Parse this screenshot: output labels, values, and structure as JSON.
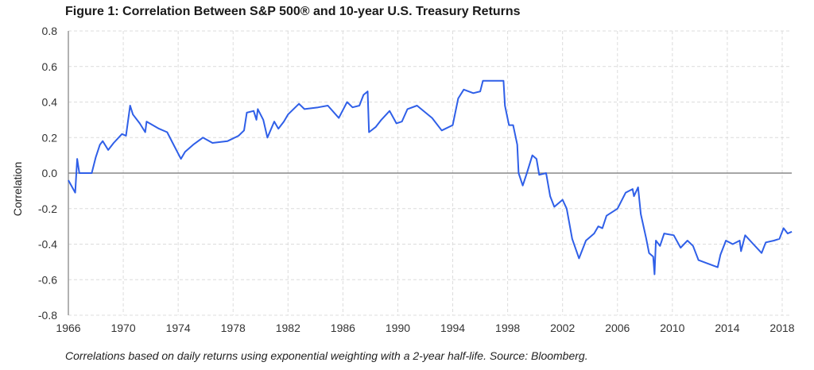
{
  "chart_data": {
    "type": "line",
    "title": "Figure 1: Correlation Between S&P 500® and 10-year U.S. Treasury Returns",
    "xlabel": "",
    "ylabel": "Correlation",
    "caption": "Correlations based on daily returns using exponential weighting with a 2-year half-life. Source: Bloomberg.",
    "xlim": [
      1966,
      2018.7
    ],
    "ylim": [
      -0.8,
      0.8
    ],
    "xticks": [
      "1966",
      "1970",
      "1974",
      "1978",
      "1982",
      "1986",
      "1990",
      "1994",
      "1998",
      "2002",
      "2006",
      "2010",
      "2014",
      "2018"
    ],
    "yticks": [
      "0.8",
      "0.6",
      "0.4",
      "0.2",
      "0.0",
      "-0.2",
      "-0.4",
      "-0.6",
      "-0.8"
    ],
    "grid": true,
    "series": [
      {
        "name": "Correlation",
        "color": "#2f5fe8",
        "x": [
          1966.0,
          1966.5,
          1966.64,
          1966.8,
          1967.7,
          1968.0,
          1968.3,
          1968.5,
          1968.9,
          1969.3,
          1969.9,
          1970.2,
          1970.5,
          1970.7,
          1971.2,
          1971.6,
          1971.7,
          1972.6,
          1973.2,
          1973.6,
          1974.2,
          1974.5,
          1975.1,
          1975.8,
          1976.5,
          1977.6,
          1978.4,
          1978.8,
          1979.0,
          1979.5,
          1979.7,
          1979.8,
          1980.2,
          1980.5,
          1981.0,
          1981.3,
          1981.7,
          1982.0,
          1982.8,
          1983.2,
          1984.2,
          1984.9,
          1985.7,
          1986.3,
          1986.7,
          1987.2,
          1987.5,
          1987.8,
          1987.9,
          1988.4,
          1988.8,
          1989.4,
          1989.9,
          1990.3,
          1990.7,
          1991.4,
          1992.5,
          1993.2,
          1994.0,
          1994.4,
          1994.8,
          1995.5,
          1996.0,
          1996.2,
          1997.7,
          1997.8,
          1998.1,
          1998.4,
          1998.7,
          1998.8,
          1999.1,
          1999.4,
          1999.8,
          2000.1,
          2000.3,
          2000.8,
          2001.1,
          2001.4,
          2002.0,
          2002.3,
          2002.7,
          2003.2,
          2003.7,
          2004.3,
          2004.6,
          2004.9,
          2005.2,
          2006.0,
          2006.6,
          2007.1,
          2007.2,
          2007.5,
          2007.7,
          2008.1,
          2008.3,
          2008.6,
          2008.7,
          2008.8,
          2009.1,
          2009.4,
          2010.1,
          2010.6,
          2011.1,
          2011.5,
          2011.9,
          2012.6,
          2013.3,
          2013.5,
          2013.9,
          2014.4,
          2014.9,
          2015.0,
          2015.3,
          2015.9,
          2016.5,
          2016.8,
          2017.4,
          2017.8,
          2018.1,
          2018.4,
          2018.7
        ],
        "y": [
          -0.04,
          -0.11,
          0.08,
          0.0,
          0.0,
          0.09,
          0.16,
          0.18,
          0.13,
          0.17,
          0.22,
          0.21,
          0.38,
          0.33,
          0.28,
          0.23,
          0.29,
          0.25,
          0.23,
          0.17,
          0.08,
          0.12,
          0.16,
          0.2,
          0.17,
          0.18,
          0.21,
          0.24,
          0.34,
          0.35,
          0.3,
          0.36,
          0.3,
          0.2,
          0.29,
          0.25,
          0.29,
          0.33,
          0.39,
          0.36,
          0.37,
          0.38,
          0.31,
          0.4,
          0.37,
          0.38,
          0.44,
          0.46,
          0.23,
          0.26,
          0.3,
          0.35,
          0.28,
          0.29,
          0.36,
          0.38,
          0.31,
          0.24,
          0.27,
          0.42,
          0.47,
          0.45,
          0.46,
          0.52,
          0.52,
          0.38,
          0.27,
          0.27,
          0.16,
          0.0,
          -0.07,
          0.0,
          0.1,
          0.08,
          -0.01,
          0.0,
          -0.13,
          -0.19,
          -0.15,
          -0.2,
          -0.37,
          -0.48,
          -0.38,
          -0.34,
          -0.3,
          -0.31,
          -0.24,
          -0.2,
          -0.11,
          -0.09,
          -0.13,
          -0.08,
          -0.23,
          -0.37,
          -0.45,
          -0.47,
          -0.57,
          -0.38,
          -0.41,
          -0.34,
          -0.35,
          -0.42,
          -0.38,
          -0.41,
          -0.49,
          -0.51,
          -0.53,
          -0.46,
          -0.38,
          -0.4,
          -0.38,
          -0.44,
          -0.35,
          -0.4,
          -0.45,
          -0.39,
          -0.38,
          -0.37,
          -0.31,
          -0.34,
          -0.33
        ]
      }
    ]
  }
}
